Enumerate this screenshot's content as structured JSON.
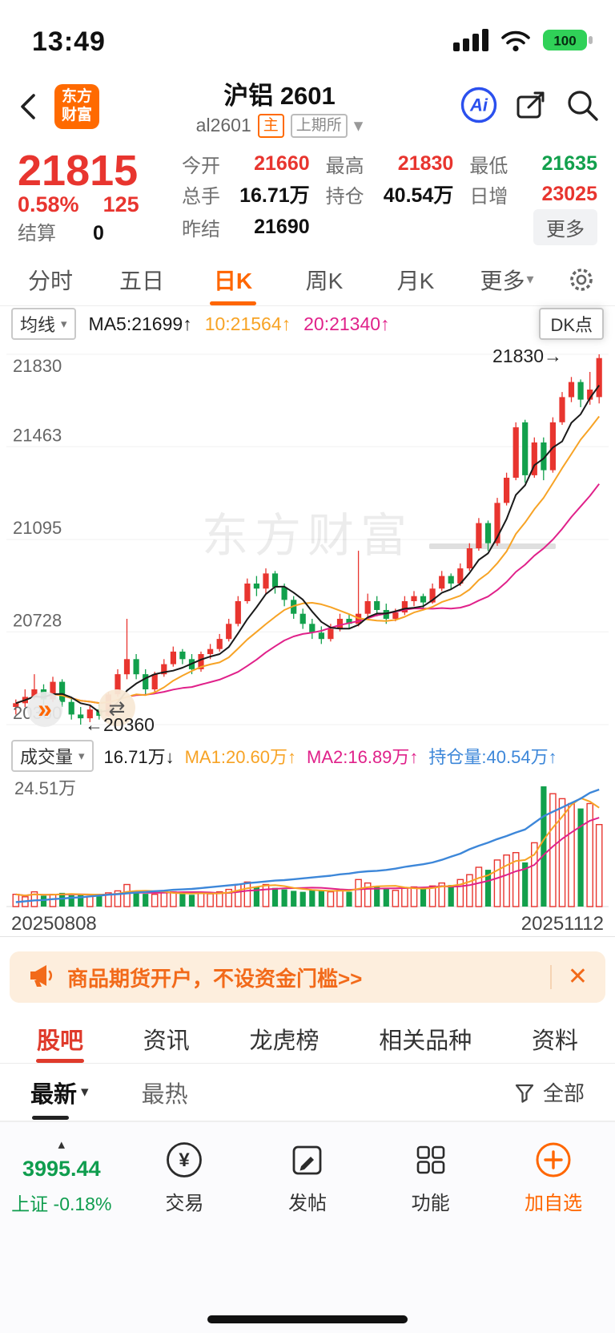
{
  "colors": {
    "up": "#e8352f",
    "down": "#12a04c",
    "ma5": "#1a1a1a",
    "ma10": "#f7a325",
    "ma20": "#e0218a",
    "open_interest": "#3d87d9",
    "accent": "#ff6600",
    "grid": "#f0f0f0"
  },
  "status_bar": {
    "time": "13:49",
    "battery_level": "100"
  },
  "header": {
    "logo_line1": "东方",
    "logo_line2": "财富",
    "title": "沪铝 2601",
    "code": "al2601",
    "badge_main": "主",
    "badge_exchange": "上期所",
    "ai_label": "Ai"
  },
  "quote": {
    "price": "21815",
    "change_pct": "0.58%",
    "change_val": "125",
    "settle_label": "结算",
    "settle": "0",
    "open_label": "今开",
    "open": "21660",
    "high_label": "最高",
    "high": "21830",
    "low_label": "最低",
    "low": "21635",
    "volume_label": "总手",
    "volume": "16.71万",
    "oi_label": "持仓",
    "oi": "40.54万",
    "increase_label": "日增",
    "increase": "23025",
    "prev_settle_label": "昨结",
    "prev_settle": "21690",
    "more": "更多"
  },
  "period_tabs": [
    "分时",
    "五日",
    "日K",
    "周K",
    "月K",
    "更多"
  ],
  "active_period": "日K",
  "chart_header": {
    "ma_selector": "均线",
    "ma5": "MA5:21699↑",
    "ma10": "10:21564↑",
    "ma20": "20:21340↑",
    "dk_button": "DK点"
  },
  "chart_annotations": {
    "high_marker": "21830→",
    "low_marker": "←20360",
    "watermark": "东方财富"
  },
  "volume_header": {
    "selector": "成交量",
    "current": "16.71万↓",
    "ma1": "MA1:20.60万↑",
    "ma2": "MA2:16.89万↑",
    "open_interest": "持仓量:40.54万↑"
  },
  "volume_axis_max": "24.51万",
  "date_start": "20250808",
  "date_end": "20251112",
  "banner": {
    "text": "商品期货开户，不设资金门槛>>",
    "close": "✕"
  },
  "content_tabs": [
    "股吧",
    "资讯",
    "龙虎榜",
    "相关品种",
    "资料"
  ],
  "active_content_tab": "股吧",
  "feed_tabs": {
    "newest": "最新",
    "hottest": "最热",
    "filter_label": "全部"
  },
  "bottom_nav": {
    "index_value": "3995.44",
    "index_label": "上证 -0.18%",
    "trade": "交易",
    "post": "发帖",
    "features": "功能",
    "add_watchlist": "加自选"
  },
  "icons": {
    "caret_down": "▾",
    "caret_up": "▴",
    "chevrons_right": "»",
    "swap": "⇄"
  },
  "chart_data": {
    "type": "candlestick+volume",
    "symbol": "al2601",
    "period": "日K",
    "price_axis": [
      21830,
      21463,
      21095,
      20728,
      20360
    ],
    "price_range": [
      20360,
      21830
    ],
    "volume_axis_max": 24.51,
    "open_interest_latest": 40.54,
    "date_start": "20250808",
    "date_end": "20251112",
    "candles_ohlc": [
      [
        20430,
        20460,
        20400,
        20445
      ],
      [
        20445,
        20500,
        20430,
        20470
      ],
      [
        20470,
        20560,
        20460,
        20500
      ],
      [
        20500,
        20520,
        20440,
        20460
      ],
      [
        20460,
        20550,
        20450,
        20530
      ],
      [
        20530,
        20540,
        20430,
        20450
      ],
      [
        20450,
        20470,
        20380,
        20400
      ],
      [
        20400,
        20430,
        20360,
        20385
      ],
      [
        20385,
        20440,
        20370,
        20420
      ],
      [
        20420,
        20440,
        20380,
        20395
      ],
      [
        20395,
        20490,
        20390,
        20480
      ],
      [
        20480,
        20580,
        20470,
        20560
      ],
      [
        20560,
        20780,
        20540,
        20620
      ],
      [
        20620,
        20640,
        20540,
        20560
      ],
      [
        20560,
        20580,
        20480,
        20500
      ],
      [
        20500,
        20570,
        20490,
        20560
      ],
      [
        20560,
        20620,
        20550,
        20600
      ],
      [
        20600,
        20670,
        20590,
        20650
      ],
      [
        20650,
        20660,
        20600,
        20620
      ],
      [
        20620,
        20640,
        20560,
        20580
      ],
      [
        20580,
        20650,
        20570,
        20640
      ],
      [
        20640,
        20680,
        20620,
        20660
      ],
      [
        20660,
        20720,
        20650,
        20700
      ],
      [
        20700,
        20780,
        20690,
        20760
      ],
      [
        20760,
        20870,
        20750,
        20850
      ],
      [
        20850,
        20940,
        20840,
        20920
      ],
      [
        20920,
        20950,
        20870,
        20900
      ],
      [
        20900,
        20980,
        20880,
        20960
      ],
      [
        20960,
        20970,
        20880,
        20905
      ],
      [
        20905,
        20920,
        20830,
        20855
      ],
      [
        20855,
        20870,
        20780,
        20800
      ],
      [
        20800,
        20820,
        20740,
        20760
      ],
      [
        20760,
        20780,
        20700,
        20725
      ],
      [
        20725,
        20750,
        20680,
        20700
      ],
      [
        20700,
        20760,
        20690,
        20740
      ],
      [
        20740,
        20800,
        20730,
        20780
      ],
      [
        20780,
        20800,
        20740,
        20760
      ],
      [
        20760,
        21050,
        20750,
        20800
      ],
      [
        20800,
        20880,
        20790,
        20850
      ],
      [
        20850,
        20870,
        20790,
        20815
      ],
      [
        20815,
        20840,
        20760,
        20780
      ],
      [
        20780,
        20820,
        20770,
        20805
      ],
      [
        20805,
        20870,
        20795,
        20850
      ],
      [
        20850,
        20890,
        20830,
        20870
      ],
      [
        20870,
        20880,
        20820,
        20845
      ],
      [
        20845,
        20920,
        20840,
        20900
      ],
      [
        20900,
        20970,
        20890,
        20950
      ],
      [
        20950,
        20960,
        20900,
        20920
      ],
      [
        20920,
        21000,
        20910,
        20980
      ],
      [
        20980,
        21080,
        20970,
        21060
      ],
      [
        21060,
        21180,
        21050,
        21160
      ],
      [
        21160,
        21170,
        21050,
        21080
      ],
      [
        21080,
        21260,
        21070,
        21240
      ],
      [
        21240,
        21360,
        21230,
        21340
      ],
      [
        21340,
        21560,
        21330,
        21540
      ],
      [
        21560,
        21570,
        21320,
        21350
      ],
      [
        21350,
        21500,
        21340,
        21480
      ],
      [
        21480,
        21500,
        21330,
        21370
      ],
      [
        21370,
        21580,
        21360,
        21560
      ],
      [
        21560,
        21680,
        21550,
        21660
      ],
      [
        21660,
        21740,
        21640,
        21720
      ],
      [
        21720,
        21730,
        21620,
        21650
      ],
      [
        21650,
        21760,
        21630,
        21690
      ],
      [
        21660,
        21830,
        21635,
        21815
      ]
    ],
    "volumes": [
      2.5,
      2.0,
      3.0,
      2.2,
      2.5,
      2.8,
      2.3,
      2.6,
      2.1,
      2.4,
      2.8,
      3.2,
      4.5,
      3.0,
      2.6,
      2.5,
      2.8,
      3.0,
      2.6,
      2.4,
      2.8,
      2.6,
      3.0,
      3.5,
      4.5,
      5.0,
      4.0,
      4.5,
      3.8,
      3.5,
      3.2,
      3.0,
      3.5,
      3.2,
      3.0,
      3.4,
      3.0,
      5.5,
      4.8,
      4.0,
      3.6,
      3.3,
      3.8,
      4.0,
      3.6,
      4.2,
      4.8,
      4.4,
      5.5,
      6.5,
      8.0,
      7.5,
      9.5,
      10.5,
      11.0,
      9.0,
      13.0,
      24.51,
      23.0,
      22.0,
      21.0,
      20.0,
      21.0,
      16.71
    ],
    "open_interest": [
      15.0,
      15.2,
      15.4,
      15.5,
      15.7,
      15.8,
      16.0,
      16.1,
      16.3,
      16.5,
      16.7,
      16.8,
      17.0,
      17.2,
      17.3,
      17.5,
      17.6,
      17.8,
      17.9,
      18.0,
      18.2,
      18.4,
      18.6,
      18.8,
      19.0,
      19.3,
      19.5,
      19.7,
      19.9,
      20.0,
      20.2,
      20.4,
      20.6,
      20.8,
      21.0,
      21.3,
      21.5,
      21.8,
      22.0,
      22.1,
      22.3,
      22.6,
      23.0,
      23.3,
      23.6,
      24.0,
      24.6,
      25.3,
      26.0,
      27.0,
      27.8,
      28.5,
      29.3,
      30.0,
      30.8,
      31.5,
      33.0,
      34.5,
      35.5,
      36.5,
      37.5,
      38.5,
      39.8,
      40.54
    ]
  }
}
